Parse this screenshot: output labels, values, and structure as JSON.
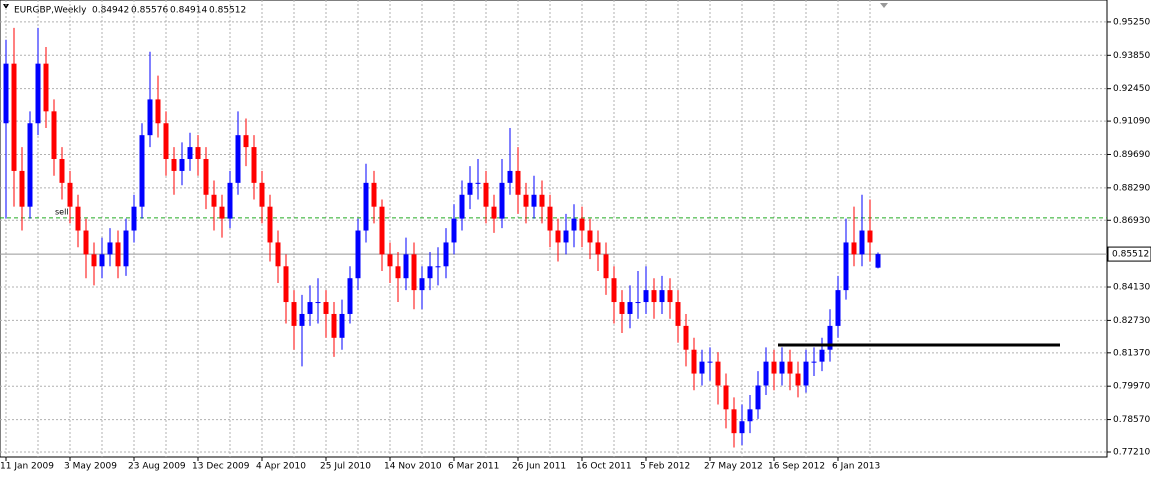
{
  "chart_data": {
    "type": "candlestick",
    "symbol": "EURGBP,Weekly",
    "categories": [
      "11 Jan 2009",
      null,
      null,
      null,
      null,
      null,
      null,
      null,
      "3 May 2009",
      null,
      null,
      null,
      null,
      null,
      null,
      null,
      "23 Aug 2009",
      null,
      null,
      null,
      null,
      null,
      null,
      null,
      "13 Dec 2009",
      null,
      null,
      null,
      null,
      null,
      null,
      null,
      "4 Apr 2010",
      null,
      null,
      null,
      null,
      null,
      null,
      null,
      "25 Jul 2010",
      null,
      null,
      null,
      null,
      null,
      null,
      null,
      "14 Nov 2010",
      null,
      null,
      null,
      null,
      null,
      null,
      null,
      "6 Mar 2011",
      null,
      null,
      null,
      null,
      null,
      null,
      null,
      "26 Jun 2011",
      null,
      null,
      null,
      null,
      null,
      null,
      null,
      "16 Oct 2011",
      null,
      null,
      null,
      null,
      null,
      null,
      null,
      "5 Feb 2012",
      null,
      null,
      null,
      null,
      null,
      null,
      null,
      "27 May 2012",
      null,
      null,
      null,
      null,
      null,
      null,
      null,
      "16 Sep 2012",
      null,
      null,
      null,
      null,
      null,
      null,
      null,
      "6 Jan 2013",
      null,
      null,
      null,
      null,
      null
    ],
    "open": [
      0.91,
      0.935,
      0.89,
      0.875,
      0.91,
      0.935,
      0.915,
      0.895,
      0.885,
      0.875,
      0.865,
      0.855,
      0.85,
      0.855,
      0.86,
      0.85,
      0.865,
      0.875,
      0.905,
      0.92,
      0.91,
      0.895,
      0.89,
      0.895,
      0.9,
      0.895,
      0.88,
      0.875,
      0.87,
      0.885,
      0.905,
      0.9,
      0.885,
      0.875,
      0.86,
      0.85,
      0.835,
      0.825,
      0.83,
      0.835,
      0.835,
      0.83,
      0.82,
      0.83,
      0.845,
      0.865,
      0.885,
      0.875,
      0.855,
      0.85,
      0.845,
      0.855,
      0.84,
      0.845,
      0.85,
      0.85,
      0.86,
      0.87,
      0.88,
      0.885,
      0.885,
      0.875,
      0.87,
      0.885,
      0.89,
      0.88,
      0.875,
      0.88,
      0.875,
      0.865,
      0.86,
      0.865,
      0.87,
      0.865,
      0.86,
      0.855,
      0.845,
      0.835,
      0.83,
      0.835,
      0.835,
      0.84,
      0.835,
      0.84,
      0.835,
      0.825,
      0.815,
      0.805,
      0.81,
      0.81,
      0.8,
      0.79,
      0.78,
      0.785,
      0.79,
      0.8,
      0.81,
      0.805,
      0.81,
      0.805,
      0.8,
      0.81,
      0.81,
      0.815,
      0.825,
      0.84,
      0.86,
      0.855,
      0.865,
      0.84942
    ],
    "high": [
      0.945,
      0.95,
      0.9,
      0.915,
      0.95,
      0.942,
      0.92,
      0.9,
      0.89,
      0.88,
      0.87,
      0.86,
      0.862,
      0.866,
      0.865,
      0.87,
      0.88,
      0.91,
      0.94,
      0.93,
      0.915,
      0.9,
      0.902,
      0.906,
      0.905,
      0.9,
      0.886,
      0.88,
      0.89,
      0.915,
      0.912,
      0.905,
      0.89,
      0.88,
      0.865,
      0.855,
      0.84,
      0.838,
      0.842,
      0.845,
      0.84,
      0.835,
      0.836,
      0.85,
      0.87,
      0.893,
      0.89,
      0.878,
      0.86,
      0.856,
      0.862,
      0.86,
      0.85,
      0.856,
      0.858,
      0.866,
      0.876,
      0.886,
      0.892,
      0.895,
      0.89,
      0.88,
      0.895,
      0.908,
      0.9,
      0.885,
      0.888,
      0.886,
      0.88,
      0.87,
      0.872,
      0.876,
      0.875,
      0.87,
      0.865,
      0.86,
      0.85,
      0.84,
      0.842,
      0.848,
      0.85,
      0.845,
      0.846,
      0.845,
      0.84,
      0.83,
      0.82,
      0.815,
      0.816,
      0.814,
      0.805,
      0.795,
      0.792,
      0.796,
      0.806,
      0.816,
      0.815,
      0.816,
      0.815,
      0.81,
      0.815,
      0.816,
      0.82,
      0.832,
      0.846,
      0.87,
      0.875,
      0.88,
      0.878,
      0.85576
    ],
    "low": [
      0.87,
      0.875,
      0.865,
      0.87,
      0.905,
      0.908,
      0.888,
      0.878,
      0.868,
      0.858,
      0.845,
      0.842,
      0.845,
      0.85,
      0.845,
      0.846,
      0.86,
      0.87,
      0.9,
      0.904,
      0.888,
      0.88,
      0.884,
      0.89,
      0.888,
      0.874,
      0.865,
      0.862,
      0.866,
      0.88,
      0.892,
      0.878,
      0.868,
      0.852,
      0.843,
      0.826,
      0.815,
      0.808,
      0.825,
      0.826,
      0.82,
      0.812,
      0.815,
      0.826,
      0.84,
      0.86,
      0.868,
      0.848,
      0.843,
      0.835,
      0.84,
      0.832,
      0.832,
      0.84,
      0.842,
      0.845,
      0.855,
      0.865,
      0.874,
      0.878,
      0.868,
      0.864,
      0.866,
      0.88,
      0.872,
      0.868,
      0.87,
      0.868,
      0.858,
      0.852,
      0.855,
      0.858,
      0.858,
      0.853,
      0.848,
      0.838,
      0.826,
      0.822,
      0.824,
      0.828,
      0.83,
      0.828,
      0.83,
      0.828,
      0.818,
      0.808,
      0.798,
      0.8,
      0.802,
      0.792,
      0.782,
      0.774,
      0.775,
      0.78,
      0.786,
      0.796,
      0.798,
      0.8,
      0.798,
      0.795,
      0.797,
      0.804,
      0.806,
      0.81,
      0.82,
      0.836,
      0.85,
      0.85,
      0.852,
      0.84914
    ],
    "close": [
      0.935,
      0.89,
      0.875,
      0.91,
      0.935,
      0.915,
      0.895,
      0.885,
      0.875,
      0.865,
      0.855,
      0.85,
      0.855,
      0.86,
      0.85,
      0.865,
      0.875,
      0.905,
      0.92,
      0.91,
      0.895,
      0.89,
      0.895,
      0.9,
      0.895,
      0.88,
      0.875,
      0.87,
      0.885,
      0.905,
      0.9,
      0.885,
      0.875,
      0.86,
      0.85,
      0.835,
      0.825,
      0.83,
      0.835,
      0.835,
      0.83,
      0.82,
      0.83,
      0.845,
      0.865,
      0.885,
      0.875,
      0.855,
      0.85,
      0.845,
      0.855,
      0.84,
      0.845,
      0.85,
      0.85,
      0.86,
      0.87,
      0.88,
      0.885,
      0.885,
      0.875,
      0.87,
      0.885,
      0.89,
      0.88,
      0.875,
      0.88,
      0.875,
      0.865,
      0.86,
      0.865,
      0.87,
      0.865,
      0.86,
      0.855,
      0.845,
      0.835,
      0.83,
      0.835,
      0.835,
      0.84,
      0.835,
      0.84,
      0.835,
      0.825,
      0.815,
      0.805,
      0.81,
      0.81,
      0.8,
      0.79,
      0.78,
      0.785,
      0.79,
      0.8,
      0.81,
      0.805,
      0.81,
      0.805,
      0.8,
      0.81,
      0.81,
      0.815,
      0.825,
      0.84,
      0.86,
      0.855,
      0.865,
      0.86,
      0.85512
    ],
    "up_color": "#0000ff",
    "down_color": "#ff0000",
    "ylim": [
      0.77,
      0.9617
    ],
    "yticks": [
      {
        "value": 0.9525,
        "label": "0.95250"
      },
      {
        "value": 0.9385,
        "label": "0.93850"
      },
      {
        "value": 0.9245,
        "label": "0.92450"
      },
      {
        "value": 0.9109,
        "label": "0.91090"
      },
      {
        "value": 0.8969,
        "label": "0.89690"
      },
      {
        "value": 0.8829,
        "label": "0.88290"
      },
      {
        "value": 0.8693,
        "label": "0.86930"
      },
      {
        "value": 0.8413,
        "label": "0.84130"
      },
      {
        "value": 0.8273,
        "label": "0.82730"
      },
      {
        "value": 0.8137,
        "label": "0.81370"
      },
      {
        "value": 0.7997,
        "label": "0.79970"
      },
      {
        "value": 0.7857,
        "label": "0.78570"
      },
      {
        "value": 0.7721,
        "label": "0.77210"
      }
    ],
    "grid": true,
    "sell_level": 0.8703,
    "sell_label": "sell",
    "support_level": 0.817,
    "support_start": 97
  }
}
